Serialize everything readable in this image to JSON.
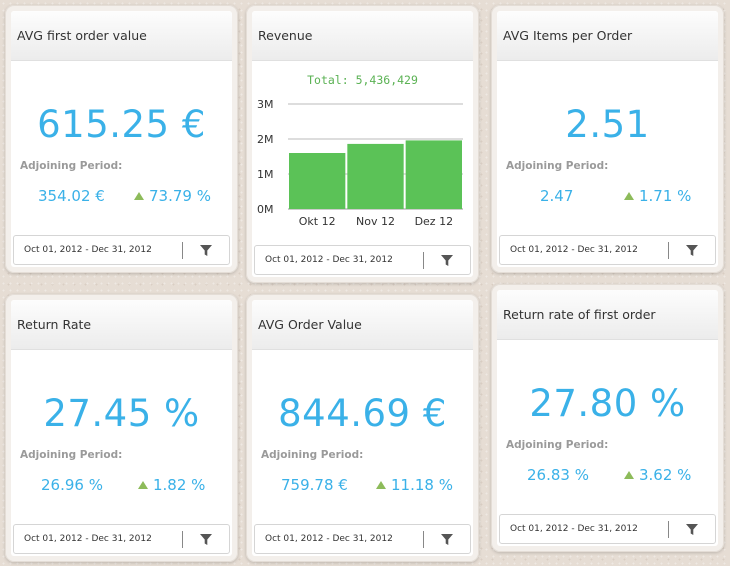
{
  "cards": {
    "avg_first_order": {
      "title": "AVG first order value",
      "value": "615.25 €",
      "adjoining_label": "Adjoining Period:",
      "previous": "354.02 €",
      "change": "73.79 %",
      "date_range": "Oct 01, 2012 - Dec 31, 2012"
    },
    "revenue": {
      "title": "Revenue",
      "total": "Total: 5,436,429",
      "date_range": "Oct 01, 2012 - Dec 31, 2012"
    },
    "avg_items": {
      "title": "AVG Items per Order",
      "value": "2.51",
      "adjoining_label": "Adjoining Period:",
      "previous": "2.47",
      "change": "1.71 %",
      "date_range": "Oct 01, 2012 - Dec 31, 2012"
    },
    "return_rate": {
      "title": "Return Rate",
      "value": "27.45 %",
      "adjoining_label": "Adjoining Period:",
      "previous": "26.96 %",
      "change": "1.82 %",
      "date_range": "Oct 01, 2012 - Dec 31, 2012"
    },
    "avg_order": {
      "title": "AVG Order Value",
      "value": "844.69 €",
      "adjoining_label": "Adjoining Period:",
      "previous": "759.78 €",
      "change": "11.18 %",
      "date_range": "Oct 01, 2012 - Dec 31, 2012"
    },
    "return_first": {
      "title": "Return rate of first order",
      "value": "27.80 %",
      "adjoining_label": "Adjoining Period:",
      "previous": "26.83 %",
      "change": "3.62 %",
      "date_range": "Oct 01, 2012 - Dec 31, 2012"
    }
  },
  "colors": {
    "value": "#3ab1e8",
    "bar": "#5bc257",
    "trend_up": "#8dbb5a",
    "total_text": "#5bb254"
  },
  "icons": {
    "trend": "triangle-up-icon",
    "filter": "funnel-icon"
  },
  "chart_data": {
    "type": "bar",
    "title": "Total: 5,436,429",
    "categories": [
      "Okt 12",
      "Nov 12",
      "Dez 12"
    ],
    "values": [
      1600000,
      1860000,
      1960000
    ],
    "ytick_labels": [
      "0M",
      "1M",
      "2M",
      "3M"
    ],
    "ylim": [
      0,
      3000000
    ],
    "grid": true,
    "legend": "none"
  }
}
